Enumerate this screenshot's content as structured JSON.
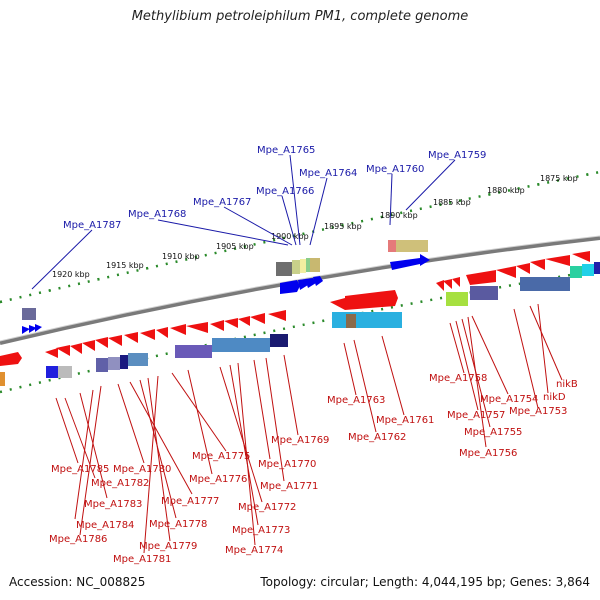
{
  "title": "Methylibium petroleiphilum PM1, complete genome",
  "accession": "Accession: NC_008825",
  "topology": "Topology: circular; Length: 4,044,195 bp; Genes: 3,864",
  "kbp_labels": [
    "1920 kbp",
    "1915 kbp",
    "1910 kbp",
    "1905 kbp",
    "1900 kbp",
    "1895 kbp",
    "1890 kbp",
    "1885 kbp",
    "1880 kbp",
    "1875 kbp"
  ],
  "top_genes": [
    "Mpe_A1787",
    "Mpe_A1768",
    "Mpe_A1767",
    "Mpe_A1766",
    "Mpe_A1765",
    "Mpe_A1764",
    "Mpe_A1760",
    "Mpe_A1759"
  ],
  "bottom_genes": [
    "Mpe_A1785",
    "Mpe_A1782",
    "Mpe_A1783",
    "Mpe_A1784",
    "Mpe_A1786",
    "Mpe_A1780",
    "Mpe_A1777",
    "Mpe_A1778",
    "Mpe_A1779",
    "Mpe_A1781",
    "Mpe_A1775",
    "Mpe_A1776",
    "Mpe_A1772",
    "Mpe_A1773",
    "Mpe_A1774",
    "Mpe_A1770",
    "Mpe_A1771",
    "Mpe_A1769",
    "Mpe_A1763",
    "Mpe_A1762",
    "Mpe_A1761",
    "Mpe_A1758",
    "Mpe_A1757",
    "Mpe_A1755",
    "Mpe_A1756",
    "Mpe_A1754",
    "Mpe_A1753",
    "nikB",
    "nikD"
  ],
  "colors": {
    "forward_gene": "#0000ee",
    "reverse_gene": "#ee1111",
    "backbone": "#888888",
    "tick": "#2a8a2a"
  }
}
